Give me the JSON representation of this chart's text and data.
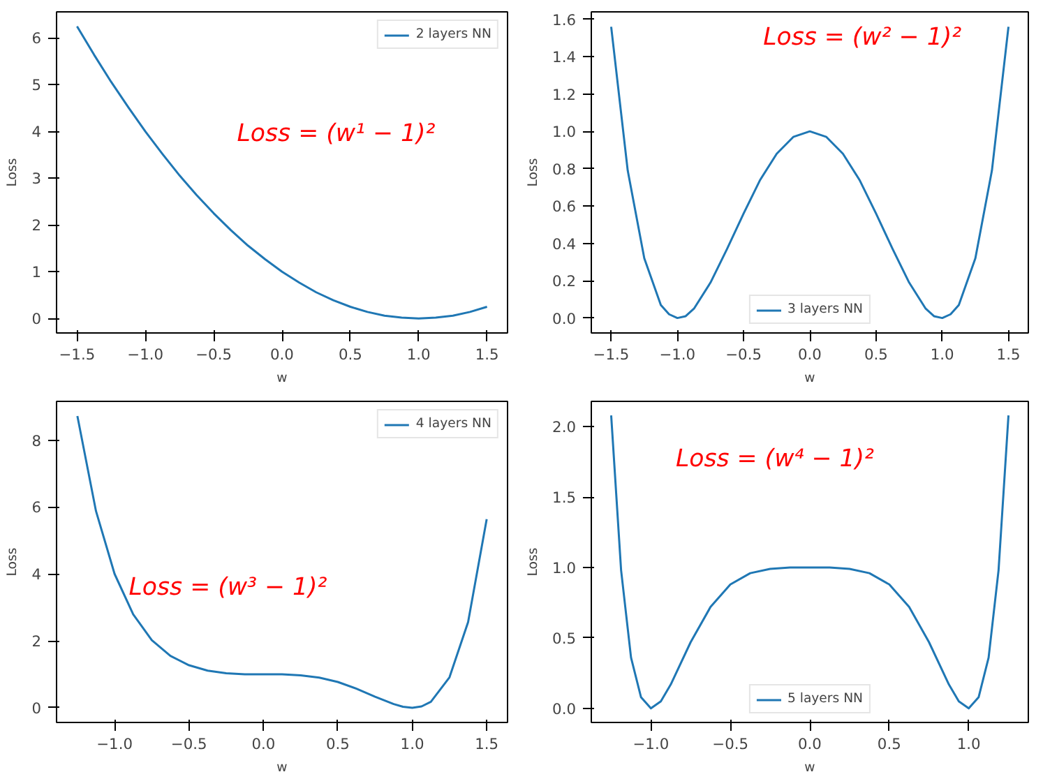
{
  "chart_data": [
    {
      "type": "line",
      "xlabel": "w",
      "ylabel": "Loss",
      "annotations": [
        "Loss = (w¹ − 1)²"
      ],
      "legend": "top right",
      "xlim": [
        -1.65,
        1.65
      ],
      "ylim": [
        -0.31,
        6.56
      ],
      "xticks": [
        {
          "value": -1.5,
          "label": "−1.5"
        },
        {
          "value": -1.0,
          "label": "−1.0"
        },
        {
          "value": -0.5,
          "label": "−0.5"
        },
        {
          "value": 0,
          "label": "0.0"
        },
        {
          "value": 0.5,
          "label": "0.5"
        },
        {
          "value": 1.0,
          "label": "1.0"
        },
        {
          "value": 1.5,
          "label": "1.5"
        }
      ],
      "yticks": [
        0,
        1,
        2,
        3,
        4,
        5,
        6
      ],
      "x": [
        -1.5,
        -1.375,
        -1.25,
        -1.125,
        -1,
        -0.875,
        -0.75,
        -0.625,
        -0.5,
        -0.375,
        -0.25,
        -0.125,
        0,
        0.125,
        0.25,
        0.375,
        0.5,
        0.625,
        0.75,
        0.875,
        1,
        1.125,
        1.25,
        1.375,
        1.5
      ],
      "series": [
        {
          "name": "2 layers NN",
          "color": "#1f77b4",
          "values": [
            6.25,
            5.64,
            5.06,
            4.52,
            4,
            3.52,
            3.06,
            2.64,
            2.25,
            1.89,
            1.56,
            1.27,
            1,
            0.77,
            0.56,
            0.39,
            0.25,
            0.14,
            0.06,
            0.02,
            0,
            0.02,
            0.06,
            0.14,
            0.25
          ]
        }
      ]
    },
    {
      "type": "line",
      "xlabel": "w",
      "ylabel": "Loss",
      "annotations": [
        "Loss = (w² − 1)²"
      ],
      "legend": "bottom",
      "xlim": [
        -1.65,
        1.65
      ],
      "ylim": [
        -0.08,
        1.64
      ],
      "xticks": [
        {
          "value": -1.5,
          "label": "−1.5"
        },
        {
          "value": -1.0,
          "label": "−1.0"
        },
        {
          "value": -0.5,
          "label": "−0.5"
        },
        {
          "value": 0,
          "label": "0.0"
        },
        {
          "value": 0.5,
          "label": "0.5"
        },
        {
          "value": 1.0,
          "label": "1.0"
        },
        {
          "value": 1.5,
          "label": "1.5"
        }
      ],
      "yticks": [
        {
          "value": 0,
          "label": "0.0"
        },
        {
          "value": 0.2,
          "label": "0.2"
        },
        {
          "value": 0.4,
          "label": "0.4"
        },
        {
          "value": 0.6,
          "label": "0.6"
        },
        {
          "value": 0.8,
          "label": "0.8"
        },
        {
          "value": 1.0,
          "label": "1.0"
        },
        {
          "value": 1.2,
          "label": "1.2"
        },
        {
          "value": 1.4,
          "label": "1.4"
        },
        {
          "value": 1.6,
          "label": "1.6"
        }
      ],
      "x": [
        -1.5,
        -1.375,
        -1.25,
        -1.125,
        -1.0625,
        -1,
        -0.9375,
        -0.875,
        -0.75,
        -0.625,
        -0.5,
        -0.375,
        -0.25,
        -0.125,
        0,
        0.125,
        0.25,
        0.375,
        0.5,
        0.625,
        0.75,
        0.875,
        0.9375,
        1,
        1.0625,
        1.125,
        1.25,
        1.375,
        1.5
      ],
      "series": [
        {
          "name": "3 layers NN",
          "color": "#1f77b4",
          "values": [
            1.56,
            0.79,
            0.32,
            0.07,
            0.02,
            0,
            0.01,
            0.05,
            0.19,
            0.37,
            0.56,
            0.74,
            0.88,
            0.97,
            1,
            0.97,
            0.88,
            0.74,
            0.56,
            0.37,
            0.19,
            0.05,
            0.01,
            0,
            0.02,
            0.07,
            0.32,
            0.79,
            1.56
          ]
        }
      ]
    },
    {
      "type": "line",
      "xlabel": "w",
      "ylabel": "Loss",
      "annotations": [
        "Loss = (w³ − 1)²"
      ],
      "legend": "top right",
      "xlim": [
        -1.39,
        1.64
      ],
      "ylim": [
        -0.44,
        9.16
      ],
      "xticks": [
        {
          "value": -1.0,
          "label": "−1.0"
        },
        {
          "value": -0.5,
          "label": "−0.5"
        },
        {
          "value": 0,
          "label": "0.0"
        },
        {
          "value": 0.5,
          "label": "0.5"
        },
        {
          "value": 1.0,
          "label": "1.0"
        },
        {
          "value": 1.5,
          "label": "1.5"
        }
      ],
      "yticks": [
        0,
        2,
        4,
        6,
        8
      ],
      "x": [
        -1.25,
        -1.125,
        -1,
        -0.875,
        -0.75,
        -0.625,
        -0.5,
        -0.375,
        -0.25,
        -0.125,
        0,
        0.125,
        0.25,
        0.375,
        0.5,
        0.625,
        0.75,
        0.875,
        0.9375,
        1,
        1.0625,
        1.125,
        1.25,
        1.375,
        1.5
      ],
      "series": [
        {
          "name": "4 layers NN",
          "color": "#1f77b4",
          "values": [
            8.72,
            5.88,
            4,
            2.79,
            2.02,
            1.55,
            1.27,
            1.11,
            1.03,
            1.0,
            1,
            1.0,
            0.97,
            0.9,
            0.77,
            0.57,
            0.33,
            0.11,
            0.03,
            0,
            0.04,
            0.18,
            0.91,
            2.56,
            5.64
          ]
        }
      ]
    },
    {
      "type": "line",
      "xlabel": "w",
      "ylabel": "Loss",
      "annotations": [
        "Loss = (w⁴ − 1)²"
      ],
      "legend": "bottom",
      "xlim": [
        -1.375,
        1.375
      ],
      "ylim": [
        -0.1,
        2.18
      ],
      "xticks": [
        {
          "value": -1.0,
          "label": "−1.0"
        },
        {
          "value": -0.5,
          "label": "−0.5"
        },
        {
          "value": 0,
          "label": "0.0"
        },
        {
          "value": 0.5,
          "label": "0.5"
        },
        {
          "value": 1.0,
          "label": "1.0"
        }
      ],
      "yticks": [
        {
          "value": 0,
          "label": "0.0"
        },
        {
          "value": 0.5,
          "label": "0.5"
        },
        {
          "value": 1.0,
          "label": "1.0"
        },
        {
          "value": 1.5,
          "label": "1.5"
        },
        {
          "value": 2.0,
          "label": "2.0"
        }
      ],
      "x": [
        -1.25,
        -1.1875,
        -1.125,
        -1.0625,
        -1,
        -0.9375,
        -0.875,
        -0.75,
        -0.625,
        -0.5,
        -0.375,
        -0.25,
        -0.125,
        0,
        0.125,
        0.25,
        0.375,
        0.5,
        0.625,
        0.75,
        0.875,
        0.9375,
        1,
        1.0625,
        1.125,
        1.1875,
        1.25
      ],
      "series": [
        {
          "name": "5 layers NN",
          "color": "#1f77b4",
          "values": [
            2.08,
            0.98,
            0.36,
            0.08,
            0,
            0.05,
            0.17,
            0.47,
            0.72,
            0.88,
            0.96,
            0.99,
            1.0,
            1,
            1.0,
            0.99,
            0.96,
            0.88,
            0.72,
            0.47,
            0.17,
            0.05,
            0,
            0.08,
            0.36,
            0.98,
            2.08
          ]
        }
      ]
    }
  ]
}
